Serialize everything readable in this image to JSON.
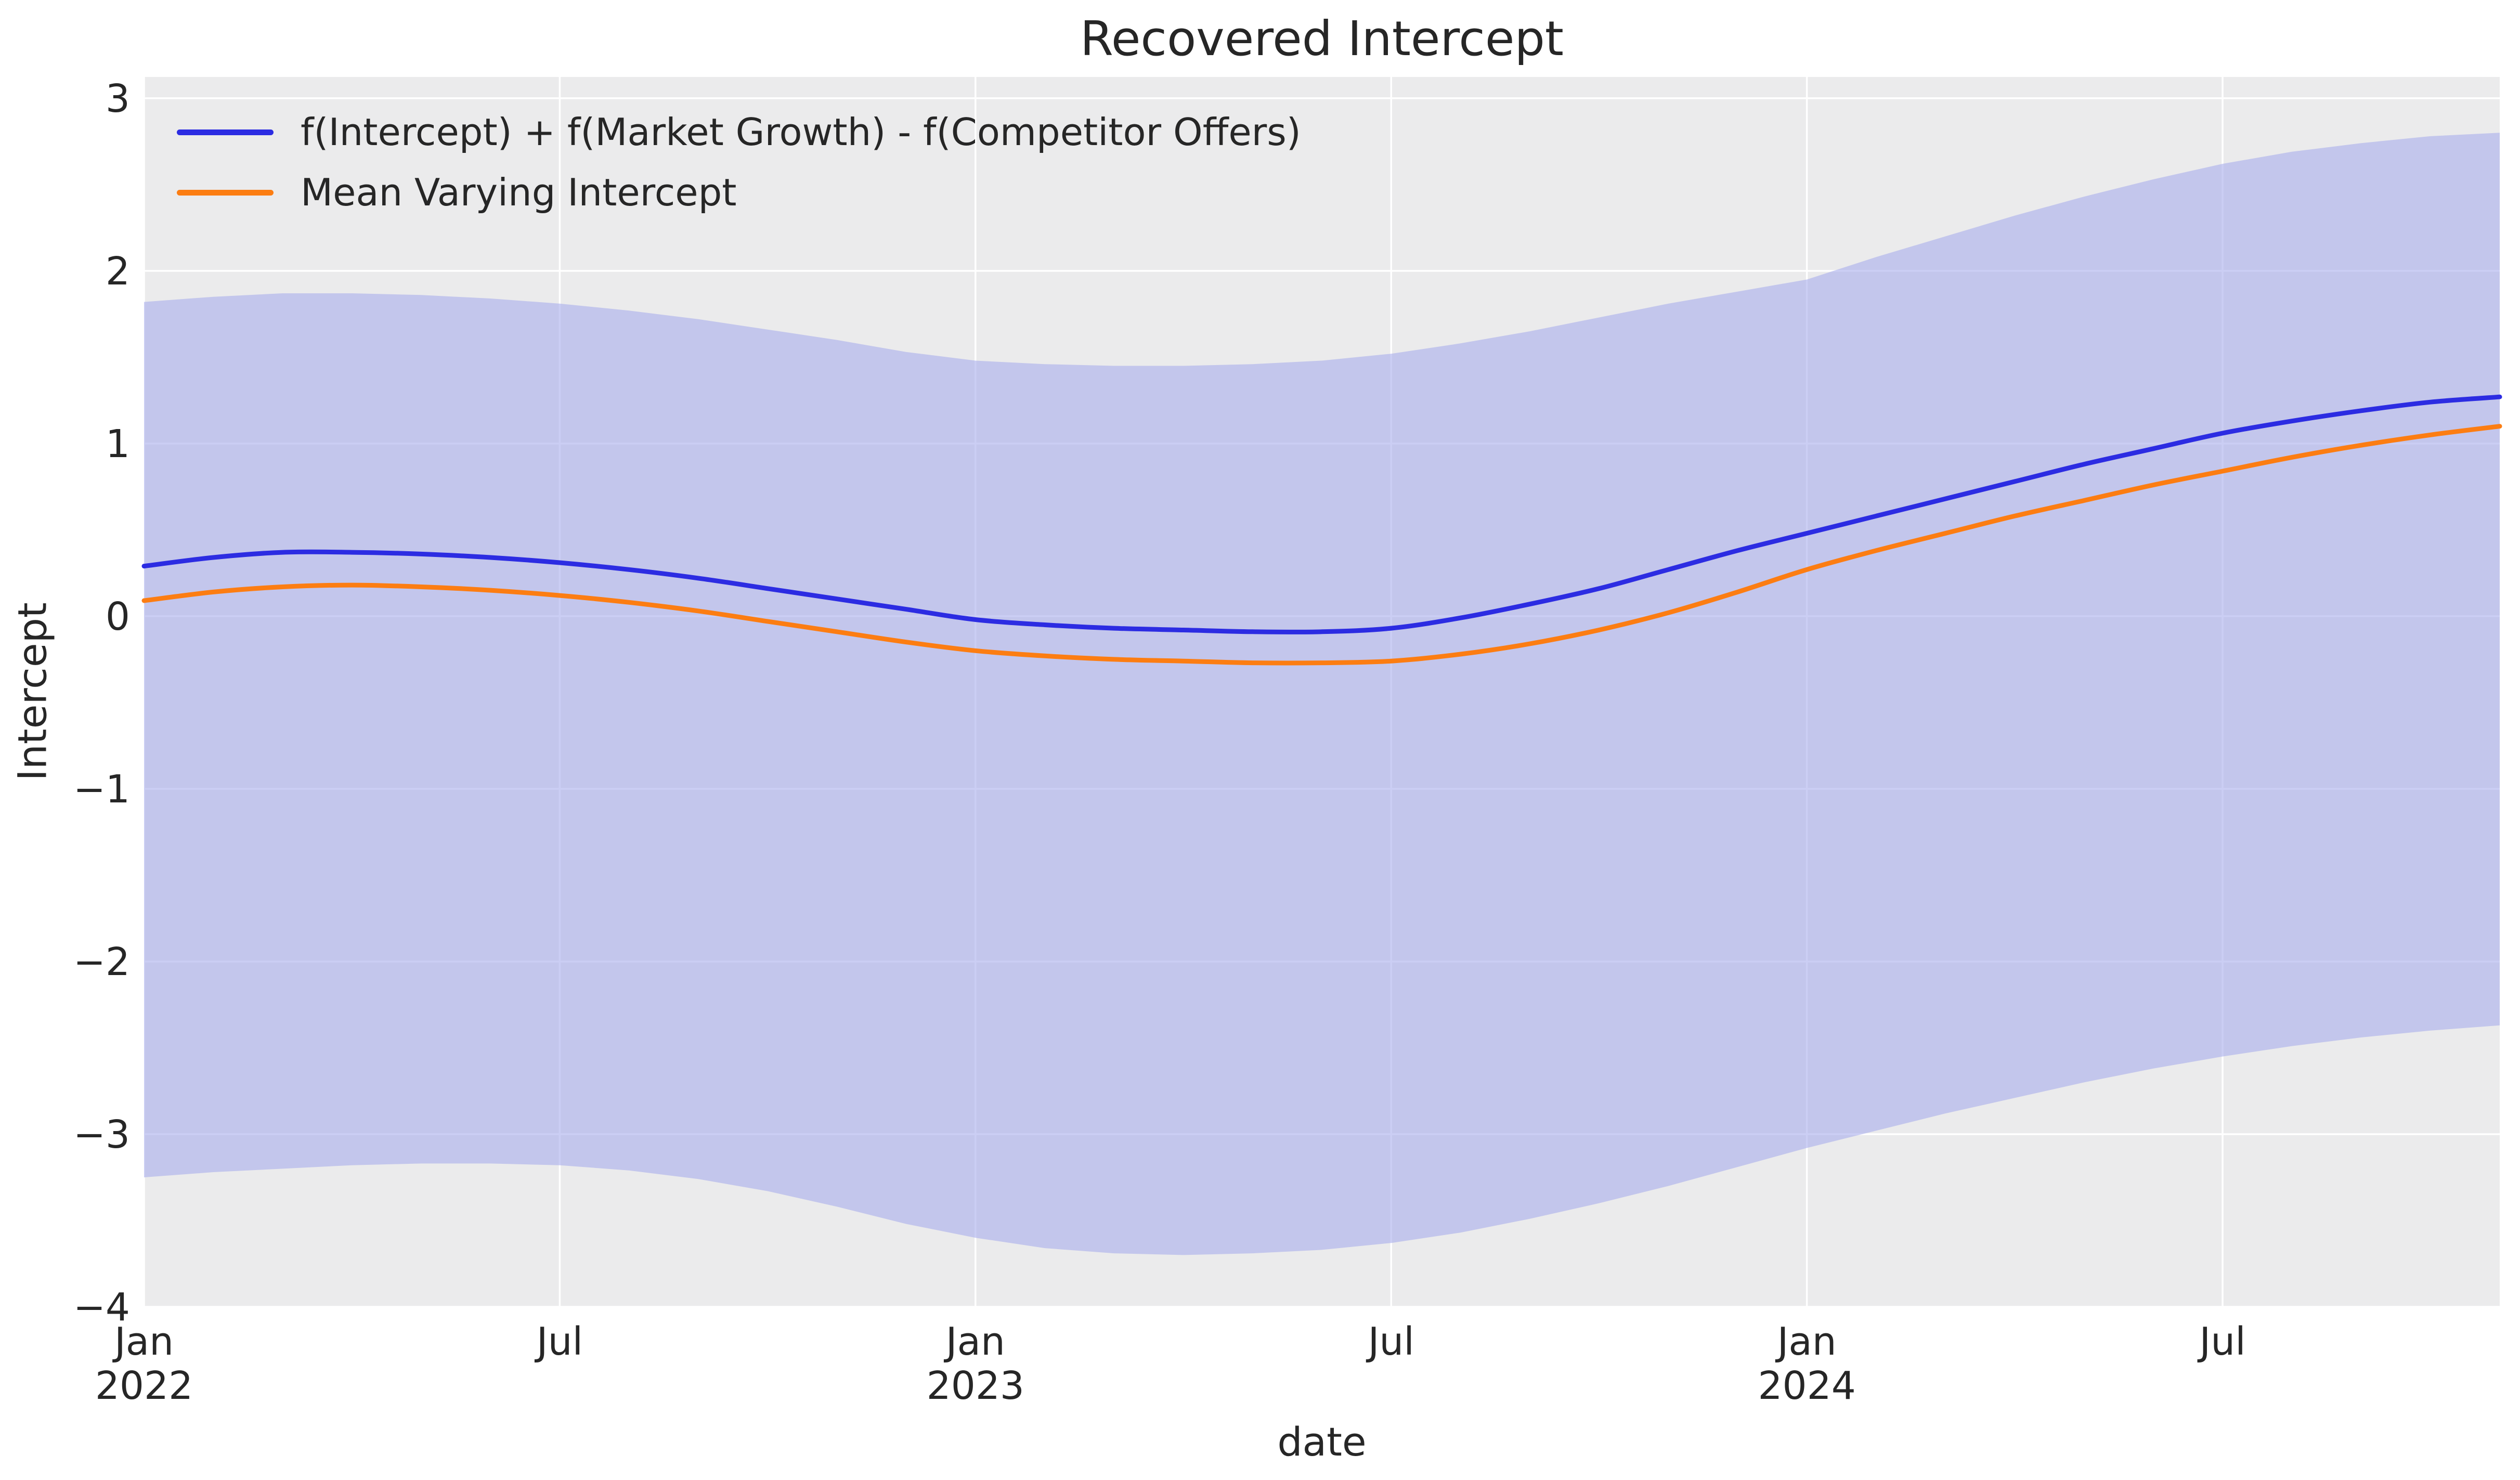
{
  "title": "Recovered Intercept",
  "xlabel": "date",
  "ylabel": "Intercept",
  "legend": [
    {
      "label": "f(Intercept) + f(Market Growth) - f(Competitor Offers)",
      "color": "#2c2ce2"
    },
    {
      "label": "Mean Varying Intercept",
      "color": "#fc7d12"
    }
  ],
  "colors": {
    "series_sum": "#2c2ce2",
    "series_mean": "#fc7d12",
    "band": "#a8adec",
    "band_opacity": 0.6,
    "axes_background": "#ebebec",
    "grid": "#ffffff",
    "text": "#262626"
  },
  "yticks": [
    {
      "v": 3,
      "label": "3"
    },
    {
      "v": 2,
      "label": "2"
    },
    {
      "v": 1,
      "label": "1"
    },
    {
      "v": 0,
      "label": "0"
    },
    {
      "v": -1,
      "label": "−1"
    },
    {
      "v": -2,
      "label": "−2"
    },
    {
      "v": -3,
      "label": "−3"
    },
    {
      "v": -4,
      "label": "−4"
    }
  ],
  "xticks": [
    {
      "m": 0,
      "month": "Jan",
      "year": "2022"
    },
    {
      "m": 6,
      "month": "Jul",
      "year": ""
    },
    {
      "m": 12,
      "month": "Jan",
      "year": "2023"
    },
    {
      "m": 18,
      "month": "Jul",
      "year": ""
    },
    {
      "m": 24,
      "month": "Jan",
      "year": "2024"
    },
    {
      "m": 30,
      "month": "Jul",
      "year": ""
    }
  ],
  "chart_data": {
    "type": "line",
    "title": "Recovered Intercept",
    "xlabel": "date",
    "ylabel": "Intercept",
    "grid": true,
    "legend_position": "upper left",
    "ylim": [
      -4.0,
      3.12
    ],
    "xlim": [
      "2022-01",
      "2024-11"
    ],
    "x": [
      "2022-01",
      "2022-02",
      "2022-03",
      "2022-04",
      "2022-05",
      "2022-06",
      "2022-07",
      "2022-08",
      "2022-09",
      "2022-10",
      "2022-11",
      "2022-12",
      "2023-01",
      "2023-02",
      "2023-03",
      "2023-04",
      "2023-05",
      "2023-06",
      "2023-07",
      "2023-08",
      "2023-09",
      "2023-10",
      "2023-11",
      "2023-12",
      "2024-01",
      "2024-02",
      "2024-03",
      "2024-04",
      "2024-05",
      "2024-06",
      "2024-07",
      "2024-08",
      "2024-09",
      "2024-10",
      "2024-11"
    ],
    "series": [
      {
        "name": "f(Intercept) + f(Market Growth) - f(Competitor Offers)",
        "color": "#2c2ce2",
        "values": [
          0.29,
          0.34,
          0.37,
          0.37,
          0.36,
          0.34,
          0.31,
          0.27,
          0.22,
          0.16,
          0.1,
          0.04,
          -0.02,
          -0.05,
          -0.07,
          -0.08,
          -0.09,
          -0.09,
          -0.07,
          -0.01,
          0.07,
          0.16,
          0.27,
          0.38,
          0.48,
          0.58,
          0.68,
          0.78,
          0.88,
          0.97,
          1.06,
          1.13,
          1.19,
          1.24,
          1.27
        ]
      },
      {
        "name": "Mean Varying Intercept",
        "color": "#fc7d12",
        "values": [
          0.09,
          0.14,
          0.17,
          0.18,
          0.17,
          0.15,
          0.12,
          0.08,
          0.03,
          -0.03,
          -0.09,
          -0.15,
          -0.2,
          -0.23,
          -0.25,
          -0.26,
          -0.27,
          -0.27,
          -0.26,
          -0.22,
          -0.16,
          -0.08,
          0.02,
          0.14,
          0.27,
          0.38,
          0.48,
          0.58,
          0.67,
          0.76,
          0.84,
          0.92,
          0.99,
          1.05,
          1.1
        ]
      }
    ],
    "band": {
      "name": "HDI band around recovered intercept",
      "upper": [
        1.82,
        1.85,
        1.87,
        1.87,
        1.86,
        1.84,
        1.81,
        1.77,
        1.72,
        1.66,
        1.6,
        1.53,
        1.48,
        1.46,
        1.45,
        1.45,
        1.46,
        1.48,
        1.52,
        1.58,
        1.65,
        1.73,
        1.81,
        1.88,
        1.95,
        2.08,
        2.2,
        2.32,
        2.43,
        2.53,
        2.62,
        2.69,
        2.74,
        2.78,
        2.8
      ],
      "lower": [
        -3.25,
        -3.22,
        -3.2,
        -3.18,
        -3.17,
        -3.17,
        -3.18,
        -3.21,
        -3.26,
        -3.33,
        -3.42,
        -3.52,
        -3.6,
        -3.66,
        -3.69,
        -3.7,
        -3.69,
        -3.67,
        -3.63,
        -3.57,
        -3.49,
        -3.4,
        -3.3,
        -3.19,
        -3.08,
        -2.98,
        -2.88,
        -2.79,
        -2.7,
        -2.62,
        -2.55,
        -2.49,
        -2.44,
        -2.4,
        -2.37
      ]
    }
  }
}
